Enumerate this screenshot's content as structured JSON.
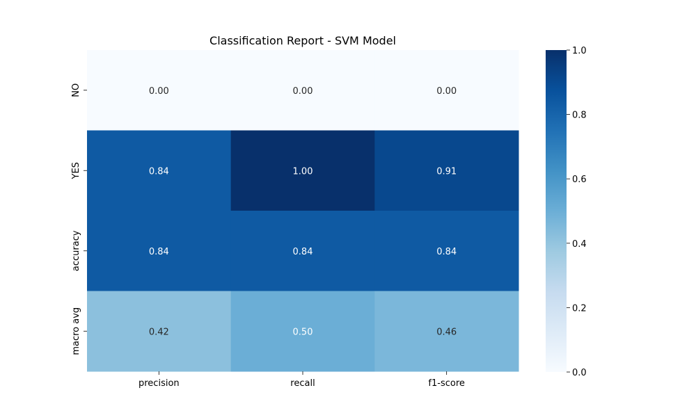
{
  "chart_data": {
    "type": "heatmap",
    "title": "Classification Report - SVM Model",
    "xlabel": "",
    "ylabel": "",
    "columns": [
      "precision",
      "recall",
      "f1-score"
    ],
    "rows": [
      "NO",
      "YES",
      "accuracy",
      "macro avg"
    ],
    "values": [
      [
        0.0,
        0.0,
        0.0
      ],
      [
        0.84,
        1.0,
        0.91
      ],
      [
        0.84,
        0.84,
        0.84
      ],
      [
        0.42,
        0.5,
        0.46
      ]
    ],
    "labels": [
      [
        "0.00",
        "0.00",
        "0.00"
      ],
      [
        "0.84",
        "1.00",
        "0.91"
      ],
      [
        "0.84",
        "0.84",
        "0.84"
      ],
      [
        "0.42",
        "0.50",
        "0.46"
      ]
    ],
    "vmin": 0.0,
    "vmax": 1.0,
    "colormap": "Blues",
    "colorbar": {
      "ticks": [
        0.0,
        0.2,
        0.4,
        0.6,
        0.8,
        1.0
      ],
      "tick_labels": [
        "0.0",
        "0.2",
        "0.4",
        "0.6",
        "0.8",
        "1.0"
      ]
    },
    "colormap_stops": [
      "#f7fbff",
      "#deebf7",
      "#c6dbef",
      "#9ecae1",
      "#6baed6",
      "#4292c6",
      "#2171b5",
      "#08519c",
      "#08306b"
    ],
    "text_color_dark": "#262626",
    "text_color_light": "#ffffff",
    "grid": false
  }
}
